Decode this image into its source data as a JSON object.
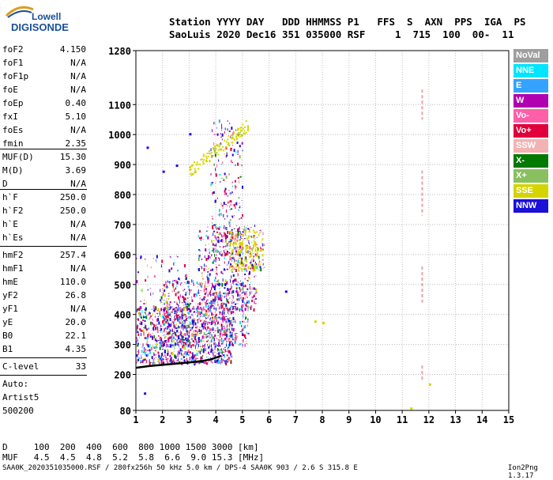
{
  "logo": {
    "top": "Lowell",
    "bottom": "DIGISONDE"
  },
  "header": {
    "line1": "Station YYYY DAY   DDD HHMMSS P1   FFS  S  AXN  PPS  IGA  PS",
    "line2": "SaoLuis 2020 Dec16 351 035000 RSF     1  715  100  00-  11"
  },
  "params": [
    {
      "name": "foF2",
      "value": "4.150"
    },
    {
      "name": "foF1",
      "value": "N/A"
    },
    {
      "name": "foF1p",
      "value": "N/A"
    },
    {
      "name": "foE",
      "value": "N/A"
    },
    {
      "name": "foEp",
      "value": "0.40"
    },
    {
      "name": "fxI",
      "value": "5.10"
    },
    {
      "name": "foEs",
      "value": "N/A"
    },
    {
      "name": "fmin",
      "value": "2.35"
    },
    {
      "name": "MUF(D)",
      "value": "15.30"
    },
    {
      "name": "M(D)",
      "value": "3.69"
    },
    {
      "name": "D",
      "value": "N/A"
    },
    {
      "name": "h`F",
      "value": "250.0"
    },
    {
      "name": "h`F2",
      "value": "250.0"
    },
    {
      "name": "h`E",
      "value": "N/A"
    },
    {
      "name": "h`Es",
      "value": "N/A"
    },
    {
      "name": "hmF2",
      "value": "257.4"
    },
    {
      "name": "hmF1",
      "value": "N/A"
    },
    {
      "name": "hmE",
      "value": "110.0"
    },
    {
      "name": "yF2",
      "value": "26.8"
    },
    {
      "name": "yF1",
      "value": "N/A"
    },
    {
      "name": "yE",
      "value": "20.0"
    },
    {
      "name": "B0",
      "value": "22.1"
    },
    {
      "name": "B1",
      "value": "4.35"
    },
    {
      "name": "C-level",
      "value": "33"
    }
  ],
  "auto": {
    "line1": "Auto:",
    "line2": "Artist5",
    "line3": "500200"
  },
  "legend": [
    {
      "label": "NoVal",
      "color": "#9e9e9e"
    },
    {
      "label": "NNE",
      "color": "#00e5ff"
    },
    {
      "label": "E",
      "color": "#33a3ff"
    },
    {
      "label": "W",
      "color": "#b000b0"
    },
    {
      "label": "Vo-",
      "color": "#ff5fa8"
    },
    {
      "label": "Vo+",
      "color": "#e0003c"
    },
    {
      "label": "SSW",
      "color": "#f4b3b3"
    },
    {
      "label": "X-",
      "color": "#007a00"
    },
    {
      "label": "X+",
      "color": "#88c060"
    },
    {
      "label": "SSE",
      "color": "#d4d400"
    },
    {
      "label": "NNW",
      "color": "#1a10d8"
    }
  ],
  "bottom": {
    "row1": "D     100  200  400  600  800 1000 1500 3000 [km]",
    "row2": "MUF   4.5  4.5  4.8  5.2  5.8  6.6  9.0 15.3 [MHz]"
  },
  "footer": "SAA0K_2020351035000.RSF / 280fx256h 50 kHz 5.0 km / DPS-4 SAA0K 903 / 2.6 S 315.8 E",
  "version": "Ion2Png 1.3.17",
  "chart_data": {
    "type": "scatter",
    "title": "",
    "xlabel": "",
    "ylabel": "",
    "xlim": [
      1,
      15
    ],
    "ylim": [
      80,
      1280
    ],
    "x_ticks": [
      1,
      2,
      3,
      4,
      5,
      6,
      7,
      8,
      9,
      10,
      11,
      12,
      13,
      14,
      15
    ],
    "y_ticks": [
      80,
      200,
      300,
      400,
      500,
      600,
      700,
      800,
      900,
      1000,
      1100,
      1280
    ],
    "grid": true,
    "legend_position": "right",
    "trace": {
      "name": "",
      "x": [
        1.0,
        1.5,
        2.0,
        2.5,
        3.0,
        3.5,
        3.8,
        4.0,
        4.2
      ],
      "y": [
        222,
        228,
        232,
        236,
        240,
        245,
        250,
        256,
        262
      ]
    },
    "clusters": [
      {
        "fmin": 1.0,
        "fmax": 4.6,
        "hmin": 240,
        "hmax": 430,
        "n": 900
      },
      {
        "fmin": 2.0,
        "fmax": 5.2,
        "hmin": 300,
        "hmax": 520,
        "n": 600
      },
      {
        "fmin": 3.3,
        "fmax": 5.5,
        "hmin": 420,
        "hmax": 700,
        "n": 400
      },
      {
        "fmin": 3.8,
        "fmax": 5.0,
        "hmin": 600,
        "hmax": 1050,
        "n": 250
      },
      {
        "fmin": 4.5,
        "fmax": 5.8,
        "hmin": 550,
        "hmax": 690,
        "n": 250
      },
      {
        "fmin": 1.0,
        "fmax": 3.0,
        "hmin": 300,
        "hmax": 600,
        "n": 150
      }
    ],
    "dashed_line": {
      "x": 11.75,
      "segments": [
        [
          1050,
          1150
        ],
        [
          730,
          880
        ],
        [
          440,
          560
        ],
        [
          180,
          230
        ]
      ]
    },
    "extra_points": [
      {
        "x": 1.4,
        "y": 960
      },
      {
        "x": 2.0,
        "y": 880
      },
      {
        "x": 2.5,
        "y": 900
      },
      {
        "x": 3.0,
        "y": 1005
      },
      {
        "x": 7.7,
        "y": 380
      },
      {
        "x": 8.0,
        "y": 375
      },
      {
        "x": 6.6,
        "y": 480
      },
      {
        "x": 1.3,
        "y": 140
      },
      {
        "x": 11.3,
        "y": 90
      },
      {
        "x": 12.0,
        "y": 170
      }
    ]
  }
}
